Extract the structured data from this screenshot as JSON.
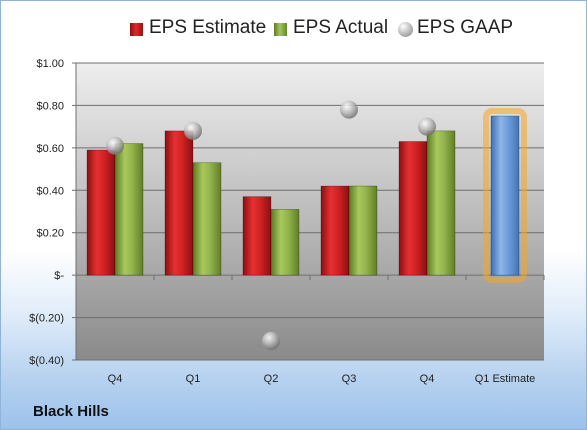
{
  "chart_data": {
    "type": "bar",
    "title": "Black Hills",
    "categories": [
      "Q4",
      "Q1",
      "Q2",
      "Q3",
      "Q4",
      "Q1 Estimate"
    ],
    "series": [
      {
        "name": "EPS Estimate",
        "color": "#c81e20",
        "values": [
          0.59,
          0.68,
          0.37,
          0.42,
          0.63,
          null
        ]
      },
      {
        "name": "EPS Actual",
        "color": "#8fb24a",
        "values": [
          0.62,
          0.53,
          0.31,
          0.42,
          0.68,
          null
        ]
      },
      {
        "name": "EPS GAAP",
        "color": "#a6a6a6",
        "marker": "sphere",
        "values": [
          0.61,
          0.68,
          -0.31,
          0.78,
          0.7,
          null
        ]
      }
    ],
    "forecast": {
      "name": "Q1 Estimate",
      "value": 0.75,
      "color": "#6a9bd8",
      "glow": "#f5a623"
    },
    "ylim": [
      -0.4,
      1.0
    ],
    "yticks": [
      -0.4,
      -0.2,
      0.0,
      0.2,
      0.4,
      0.6,
      0.8,
      1.0
    ],
    "ytick_labels": [
      "$(0.40)",
      "$(0.20)",
      "$-",
      "$0.20",
      "$0.40",
      "$0.60",
      "$0.80",
      "$1.00"
    ],
    "grid": true,
    "legend_position": "top"
  }
}
